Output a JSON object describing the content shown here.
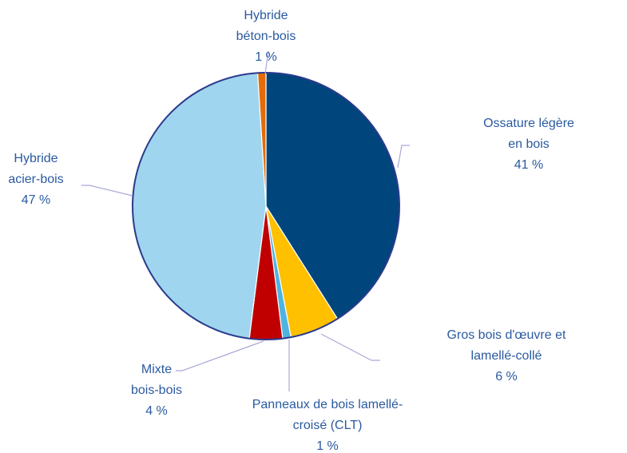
{
  "chart_data": {
    "type": "pie",
    "categories": [
      "Ossature légère en bois",
      "Gros bois d'œuvre et lamellé-collé",
      "Panneaux de bois lamellé-\ncroisé (CLT)",
      "Mixte\nbois-bois",
      "Hybride\nacier-bois",
      "Hybride\nbéton-bois"
    ],
    "values": [
      41,
      6,
      1,
      4,
      47,
      1
    ],
    "value_labels": [
      "41 %",
      "6 %",
      "1 %",
      "4 %",
      "47 %",
      "1 %"
    ],
    "colors": [
      "#00457c",
      "#ffc000",
      "#4fb3e0",
      "#c00000",
      "#9fd5ee",
      "#e36c09"
    ]
  }
}
